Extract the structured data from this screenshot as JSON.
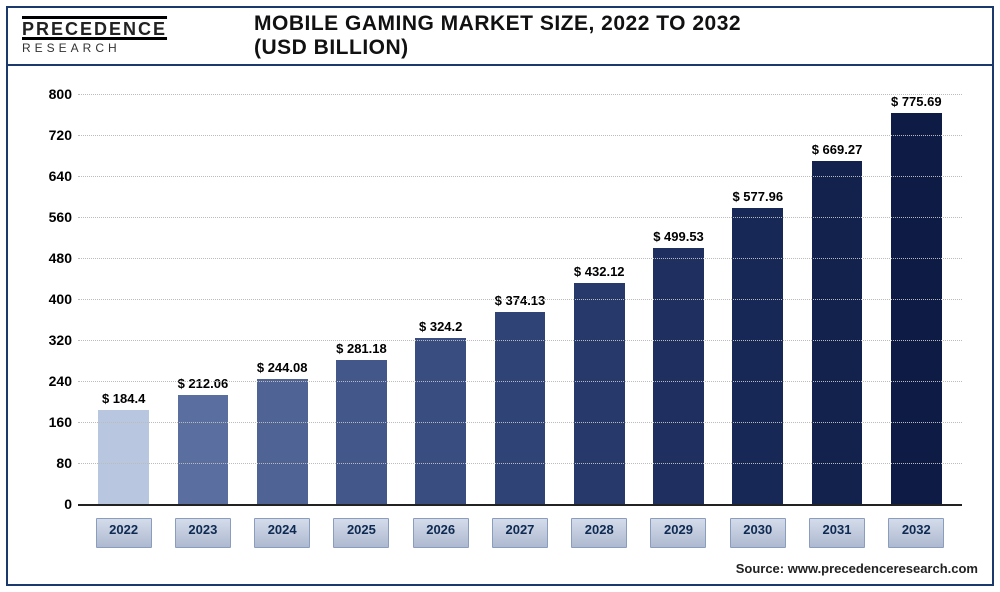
{
  "logo": {
    "top": "PRECEDENCE",
    "bottom": "RESEARCH"
  },
  "title": "MOBILE GAMING MARKET SIZE, 2022 TO 2032 (USD BILLION)",
  "source": "Source: www.precedenceresearch.com",
  "chart": {
    "type": "bar",
    "ylim": [
      0,
      800
    ],
    "ytick_step": 80,
    "yticks": [
      0,
      80,
      160,
      240,
      320,
      400,
      480,
      560,
      640,
      720,
      800
    ],
    "grid_color": "#bbbbbb",
    "title_fontsize": 21,
    "label_fontsize": 13,
    "bar_width": 0.64,
    "background_color": "#ffffff",
    "categories": [
      "2022",
      "2023",
      "2024",
      "2025",
      "2026",
      "2027",
      "2028",
      "2029",
      "2030",
      "2031",
      "2032"
    ],
    "values": [
      184.4,
      212.06,
      244.08,
      281.18,
      324.2,
      374.13,
      432.12,
      499.53,
      577.96,
      669.27,
      775.69
    ],
    "value_labels": [
      "$ 184.4",
      "$ 212.06",
      "$ 244.08",
      "$ 281.18",
      "$ 324.2",
      "$ 374.13",
      "$ 432.12",
      "$ 499.53",
      "$ 577.96",
      "$ 669.27",
      "$ 775.69"
    ],
    "bar_colors": [
      "#b9c6e0",
      "#5a6ea0",
      "#4f6394",
      "#44578a",
      "#3a4d80",
      "#2f4376",
      "#27396a",
      "#1f3060",
      "#182856",
      "#13214d",
      "#0e1b45"
    ]
  }
}
